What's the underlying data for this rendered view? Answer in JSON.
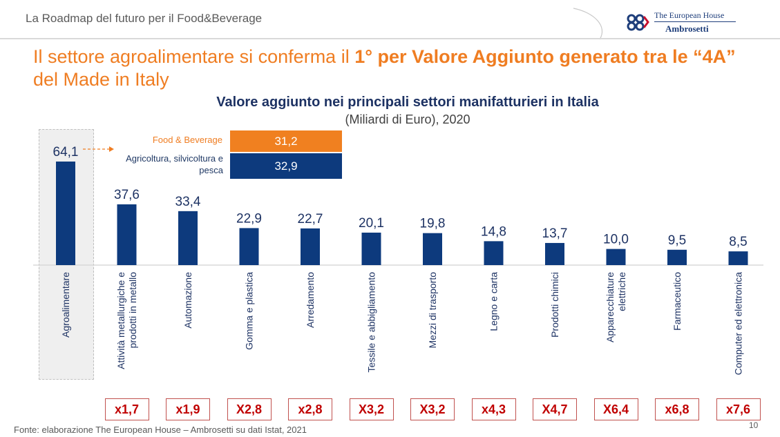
{
  "header": {
    "title": "La Roadmap del futuro per il Food&Beverage"
  },
  "logo": {
    "line1": "The European House",
    "line2": "Ambrosetti"
  },
  "slide_title": {
    "part1": "Il settore agroalimentare si conferma il ",
    "bold1": "1° per Valore Aggiunto generato tra le “4A”",
    "part2": " del Made in Italy"
  },
  "chart_data": {
    "type": "bar",
    "title": "Valore aggiunto nei principali settori manifatturieri in Italia",
    "subtitle": "(Miliardi di Euro), 2020",
    "categories": [
      "Agroalimentare",
      "Attività metallurgiche e prodotti in metallo",
      "Automazione",
      "Gomma e plastica",
      "Arredamento",
      "Tessile e abbigliamento",
      "Mezzi di trasporto",
      "Legno e carta",
      "Prodotti chimici",
      "Apparecchiature elettriche",
      "Farmaceutico",
      "Computer ed elettronica"
    ],
    "values": [
      64.1,
      37.6,
      33.4,
      22.9,
      22.7,
      20.1,
      19.8,
      14.8,
      13.7,
      10.0,
      9.5,
      8.5
    ],
    "value_labels": [
      "64,1",
      "37,6",
      "33,4",
      "22,9",
      "22,7",
      "20,1",
      "19,8",
      "14,8",
      "13,7",
      "10,0",
      "9,5",
      "8,5"
    ],
    "multipliers": [
      "x1,7",
      "x1,9",
      "X2,8",
      "x2,8",
      "X3,2",
      "X3,2",
      "x4,3",
      "X4,7",
      "X6,4",
      "x6,8",
      "x7,6"
    ],
    "breakdown": [
      {
        "label": "Food & Beverage",
        "value": 31.2,
        "value_label": "31,2",
        "color": "#f08020"
      },
      {
        "label": "Agricoltura, silvicoltura e pesca",
        "value": 32.9,
        "value_label": "32,9",
        "color": "#0d3a7d"
      }
    ],
    "bar_color": "#0d3a7d",
    "ylim": [
      0,
      70
    ]
  },
  "colors": {
    "accent": "#ef7d22",
    "bar": "#0d3a7d",
    "multiplier_border": "#c0504d",
    "multiplier_text": "#c00000"
  },
  "footer": {
    "source": "Fonte: elaborazione The European House – Ambrosetti su dati Istat, 2021",
    "page_number": "10"
  }
}
